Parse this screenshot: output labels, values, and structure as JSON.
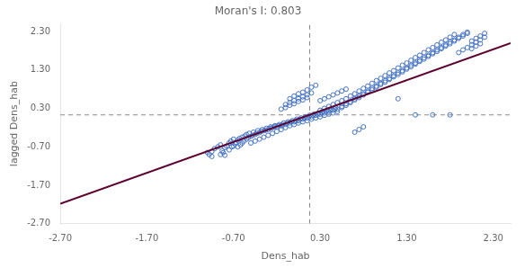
{
  "chart_data": {
    "type": "scatter",
    "title": "Moran's I: 0.803",
    "xlabel": "Dens_hab",
    "ylabel": "lagged Dens_hab",
    "xlim": [
      -2.7,
      2.5
    ],
    "ylim": [
      -2.7,
      2.5
    ],
    "xticks": [
      {
        "value": -2.7,
        "label": "-2.70"
      },
      {
        "value": -1.7,
        "label": "-1.70"
      },
      {
        "value": -0.7,
        "label": "-0.70"
      },
      {
        "value": 0.3,
        "label": "0.30"
      },
      {
        "value": 1.3,
        "label": "1.30"
      },
      {
        "value": 2.3,
        "label": "2.30"
      }
    ],
    "yticks": [
      {
        "value": -2.7,
        "label": "-2.70"
      },
      {
        "value": -1.7,
        "label": "-1.70"
      },
      {
        "value": -0.7,
        "label": "-0.70"
      },
      {
        "value": 0.3,
        "label": "0.30"
      },
      {
        "value": 1.3,
        "label": "1.30"
      },
      {
        "value": 2.3,
        "label": "2.30"
      }
    ],
    "grid": false,
    "series": [
      {
        "type": "scatter",
        "marker": "circle",
        "color": "#4472C4",
        "x": [
          -0.95,
          -0.92,
          -0.88,
          -0.85,
          -0.83,
          -0.8,
          -0.78,
          -0.75,
          -0.75,
          -0.73,
          -0.72,
          -0.7,
          -0.7,
          -0.68,
          -0.67,
          -0.65,
          -0.65,
          -0.63,
          -0.62,
          -0.6,
          -0.6,
          -0.58,
          -0.57,
          -0.55,
          -0.55,
          -0.53,
          -0.52,
          -0.5,
          -0.5,
          -0.48,
          -0.47,
          -0.45,
          -0.45,
          -0.43,
          -0.42,
          -0.4,
          -0.4,
          -0.38,
          -0.37,
          -0.35,
          -0.35,
          -0.33,
          -0.32,
          -0.3,
          -0.3,
          -0.28,
          -0.27,
          -0.25,
          -0.25,
          -0.23,
          -0.22,
          -0.2,
          -0.2,
          -0.18,
          -0.17,
          -0.15,
          -0.15,
          -0.13,
          -0.12,
          -0.1,
          -0.1,
          -0.08,
          -0.07,
          -0.05,
          -0.05,
          -0.03,
          -0.02,
          0.0,
          0.0,
          0.02,
          0.03,
          0.05,
          0.05,
          0.07,
          0.08,
          0.1,
          0.1,
          0.12,
          0.13,
          0.15,
          0.15,
          0.17,
          0.18,
          0.2,
          0.2,
          0.22,
          0.23,
          0.25,
          0.25,
          0.27,
          0.28,
          0.3,
          0.3,
          0.32,
          0.33,
          0.35,
          0.35,
          0.37,
          0.38,
          0.4,
          0.4,
          0.42,
          0.43,
          0.45,
          0.45,
          0.47,
          0.48,
          0.5,
          0.5,
          0.55,
          0.6,
          0.65,
          0.7,
          0.75,
          0.8,
          0.85,
          0.9,
          0.95,
          1.0,
          1.05,
          1.1,
          1.15,
          1.2,
          1.25,
          1.3,
          1.35,
          1.4,
          1.45,
          1.5,
          1.55,
          1.6,
          1.65,
          1.7,
          1.75,
          1.8,
          1.85,
          1.9,
          1.95,
          2.0,
          0.55,
          0.6,
          0.65,
          0.7,
          0.75,
          0.8,
          0.85,
          0.9,
          0.95,
          1.0,
          1.05,
          1.1,
          1.15,
          1.2,
          1.25,
          1.3,
          1.35,
          1.4,
          1.45,
          1.5,
          1.55,
          1.6,
          1.65,
          1.7,
          1.75,
          1.8,
          1.85,
          1.9,
          1.95,
          2.0,
          0.6,
          0.65,
          0.7,
          0.75,
          0.8,
          0.85,
          0.9,
          0.95,
          1.0,
          1.05,
          1.1,
          1.15,
          1.2,
          1.25,
          1.3,
          1.35,
          1.4,
          1.45,
          1.5,
          1.55,
          1.6,
          1.65,
          1.7,
          1.75,
          1.8,
          1.85,
          -0.05,
          0.0,
          0.05,
          0.1,
          0.15,
          0.2,
          0.25,
          -0.1,
          -0.05,
          0.0,
          0.05,
          0.1,
          0.15,
          0.2,
          -0.15,
          -0.1,
          -0.05,
          0.0,
          0.05,
          0.1,
          0.15,
          0.3,
          0.35,
          0.4,
          0.45,
          0.5,
          0.55,
          0.6,
          0.3,
          0.35,
          0.4,
          0.45,
          0.5,
          0.55,
          1.2,
          1.4,
          1.6,
          1.8,
          0.7,
          0.75,
          0.8,
          -0.85,
          -0.82,
          -0.8,
          -1.0,
          -0.98,
          -0.95,
          2.05,
          2.1,
          2.15,
          2.2,
          2.05,
          2.1,
          2.15,
          2.2,
          2.05,
          2.1,
          2.15,
          1.9,
          1.95,
          2.0
        ],
        "values": [
          -0.82,
          -0.75,
          -0.7,
          -0.65,
          -0.8,
          -0.72,
          -0.68,
          -0.6,
          -0.78,
          -0.55,
          -0.7,
          -0.5,
          -0.68,
          -0.62,
          -0.58,
          -0.52,
          -0.7,
          -0.48,
          -0.65,
          -0.45,
          -0.6,
          -0.55,
          -0.42,
          -0.5,
          -0.38,
          -0.46,
          -0.35,
          -0.43,
          -0.6,
          -0.4,
          -0.32,
          -0.38,
          -0.55,
          -0.35,
          -0.28,
          -0.33,
          -0.5,
          -0.3,
          -0.25,
          -0.28,
          -0.45,
          -0.27,
          -0.22,
          -0.25,
          -0.4,
          -0.22,
          -0.18,
          -0.2,
          -0.35,
          -0.18,
          -0.15,
          -0.18,
          -0.3,
          -0.15,
          -0.12,
          -0.15,
          -0.25,
          -0.12,
          -0.08,
          -0.12,
          -0.2,
          -0.08,
          -0.05,
          -0.08,
          -0.15,
          -0.05,
          -0.02,
          -0.05,
          -0.12,
          -0.02,
          0.02,
          -0.02,
          -0.08,
          0.02,
          0.05,
          0.02,
          -0.05,
          0.05,
          0.08,
          0.05,
          -0.02,
          0.08,
          0.12,
          0.08,
          0.02,
          0.12,
          0.15,
          0.12,
          0.05,
          0.15,
          0.18,
          0.15,
          0.08,
          0.18,
          0.22,
          0.18,
          0.12,
          0.22,
          0.25,
          0.22,
          0.15,
          0.25,
          0.28,
          0.25,
          0.18,
          0.28,
          0.32,
          0.28,
          0.22,
          0.35,
          0.42,
          0.48,
          0.55,
          0.62,
          0.68,
          0.75,
          0.82,
          0.88,
          0.95,
          1.02,
          1.08,
          1.15,
          1.22,
          1.28,
          1.35,
          1.42,
          1.48,
          1.55,
          1.62,
          1.68,
          1.75,
          1.82,
          1.88,
          1.95,
          2.02,
          2.08,
          2.15,
          2.22,
          2.28,
          0.32,
          0.38,
          0.45,
          0.52,
          0.58,
          0.65,
          0.72,
          0.78,
          0.85,
          0.92,
          0.98,
          1.05,
          1.12,
          1.18,
          1.25,
          1.32,
          1.38,
          1.45,
          1.52,
          1.58,
          1.65,
          1.72,
          1.78,
          1.85,
          1.92,
          1.98,
          2.05,
          2.12,
          2.18,
          2.25,
          0.55,
          0.62,
          0.68,
          0.75,
          0.82,
          0.88,
          0.95,
          1.02,
          1.08,
          1.15,
          1.22,
          1.28,
          1.35,
          1.42,
          1.48,
          1.55,
          1.62,
          1.68,
          1.75,
          1.82,
          1.88,
          1.95,
          2.02,
          2.08,
          2.15,
          2.22,
          0.55,
          0.62,
          0.68,
          0.72,
          0.78,
          0.85,
          0.9,
          0.4,
          0.45,
          0.5,
          0.55,
          0.6,
          0.65,
          0.7,
          0.28,
          0.32,
          0.38,
          0.42,
          0.48,
          0.52,
          0.58,
          0.5,
          0.55,
          0.6,
          0.65,
          0.7,
          0.75,
          0.8,
          0.25,
          0.3,
          0.35,
          0.4,
          0.45,
          0.5,
          0.55,
          0.13,
          0.13,
          0.13,
          -0.32,
          -0.25,
          -0.18,
          -0.9,
          -0.85,
          -0.92,
          -0.85,
          -0.9,
          -0.95,
          2.05,
          2.12,
          2.18,
          2.25,
          1.95,
          2.02,
          2.08,
          2.15,
          1.85,
          1.92,
          1.98,
          1.75,
          1.82,
          1.88
        ]
      },
      {
        "type": "line",
        "line_style": "solid",
        "color": "#5C0030",
        "x": [
          -2.7,
          2.5
        ],
        "values": [
          -2.1811,
          1.9945
        ]
      },
      {
        "type": "line",
        "line_style": "dashed",
        "color": "#888888",
        "x": [
          0.18,
          0.18
        ],
        "values": [
          -2.7,
          2.5
        ]
      },
      {
        "type": "line",
        "line_style": "dashed",
        "color": "#888888",
        "x": [
          -2.7,
          2.5
        ],
        "values": [
          0.13,
          0.13
        ]
      }
    ]
  }
}
